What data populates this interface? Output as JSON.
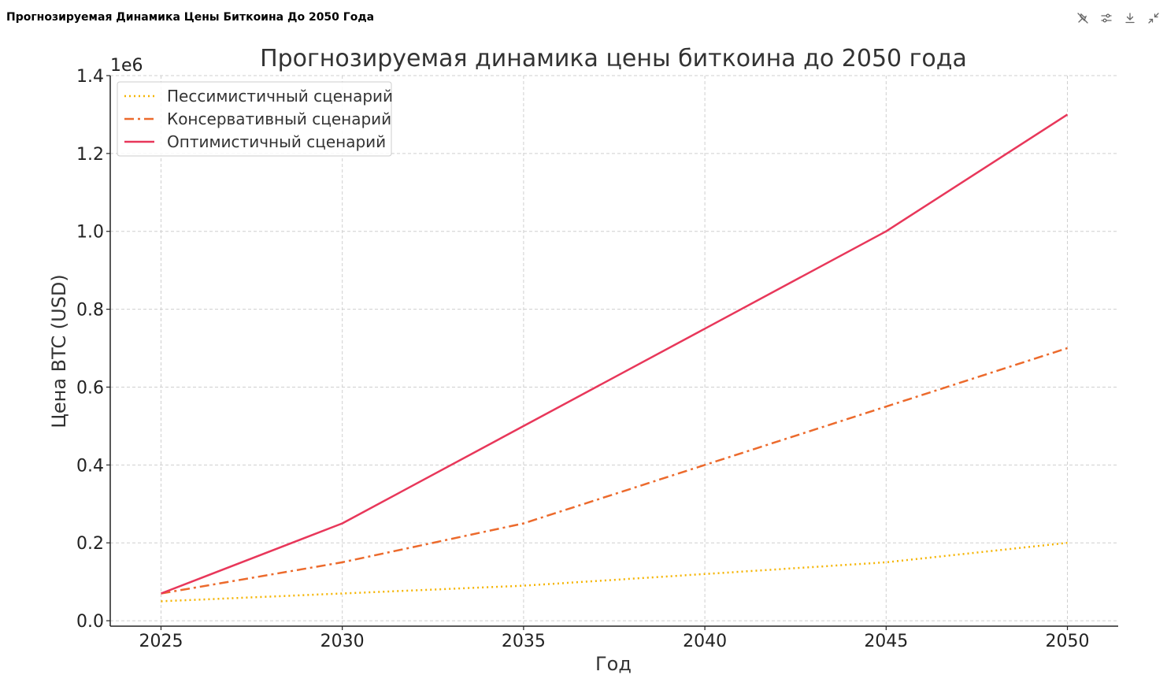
{
  "window": {
    "title": "Прогнозируемая Динамика Цены Биткоина До 2050 Года",
    "toolbar": [
      {
        "icon": "pin-off-icon"
      },
      {
        "icon": "sliders-icon"
      },
      {
        "icon": "download-icon"
      },
      {
        "icon": "collapse-icon"
      }
    ]
  },
  "chart_data": {
    "type": "line",
    "title": "Прогнозируемая динамика цены биткоина до 2050 года",
    "xlabel": "Год",
    "ylabel": "Цена BTC (USD)",
    "y_offset_label": "1e6",
    "x": [
      2025,
      2030,
      2035,
      2040,
      2045,
      2050
    ],
    "xlim": [
      2023.6,
      2051.4
    ],
    "ylim": [
      -0.014,
      1.4
    ],
    "xticks": [
      2025,
      2030,
      2035,
      2040,
      2045,
      2050
    ],
    "xtick_labels": [
      "2025",
      "2030",
      "2035",
      "2040",
      "2045",
      "2050"
    ],
    "yticks": [
      0.0,
      0.2,
      0.4,
      0.6,
      0.8,
      1.0,
      1.2,
      1.4
    ],
    "ytick_labels": [
      "0.0",
      "0.2",
      "0.4",
      "0.6",
      "0.8",
      "1.0",
      "1.2",
      "1.4"
    ],
    "grid": true,
    "legend_position": "top-left",
    "series": [
      {
        "name": "Пессимистичный сценарий",
        "values": [
          0.05,
          0.07,
          0.09,
          0.12,
          0.15,
          0.2
        ],
        "color": "#f5b400",
        "style": "dotted"
      },
      {
        "name": "Консервативный сценарий",
        "values": [
          0.07,
          0.15,
          0.25,
          0.4,
          0.55,
          0.7
        ],
        "color": "#ec6a2c",
        "style": "dashdot"
      },
      {
        "name": "Оптимистичный сценарий",
        "values": [
          0.07,
          0.25,
          0.5,
          0.75,
          1.0,
          1.3
        ],
        "color": "#e8375a",
        "style": "solid"
      }
    ]
  }
}
